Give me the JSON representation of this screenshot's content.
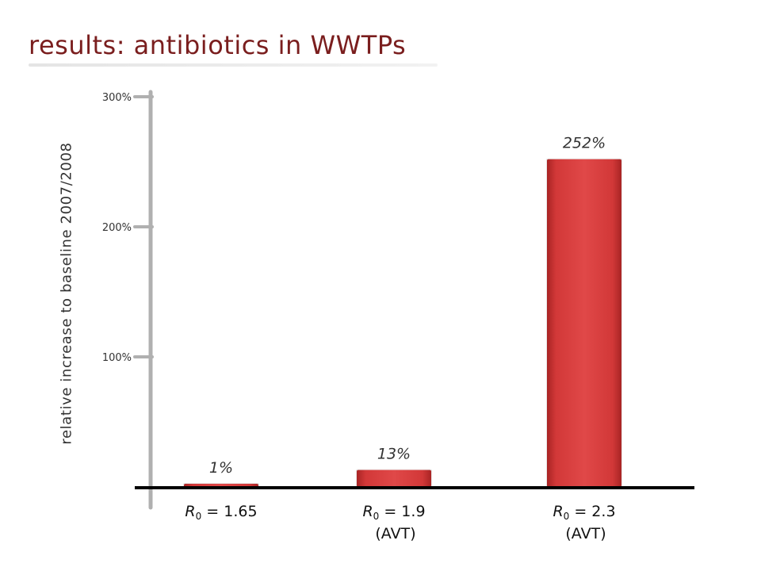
{
  "chart_data": {
    "type": "bar",
    "title": "results: antibiotics in WWTPs",
    "ylabel": "relative increase to baseline 2007/2008",
    "ylim": [
      0,
      300
    ],
    "yticks": [
      {
        "value": 100,
        "label": "100%"
      },
      {
        "value": 200,
        "label": "200%"
      },
      {
        "value": 300,
        "label": "300%"
      }
    ],
    "categories": [
      {
        "label": "= 1.65",
        "sub": ""
      },
      {
        "label": "= 1.9",
        "sub": "(AVT)"
      },
      {
        "label": "= 2.3",
        "sub": "(AVT)"
      }
    ],
    "category_symbol": "R",
    "category_symbol_subscript": "0",
    "values": [
      1,
      13,
      252
    ],
    "data_labels": [
      "1%",
      "13%",
      "252%"
    ],
    "colors": {
      "bar": "#d63c3c",
      "bar_dark": "#9e1f1f",
      "title": "#7a1e1e",
      "axis": "#000000",
      "y_axis": "#b0b0b0"
    }
  }
}
